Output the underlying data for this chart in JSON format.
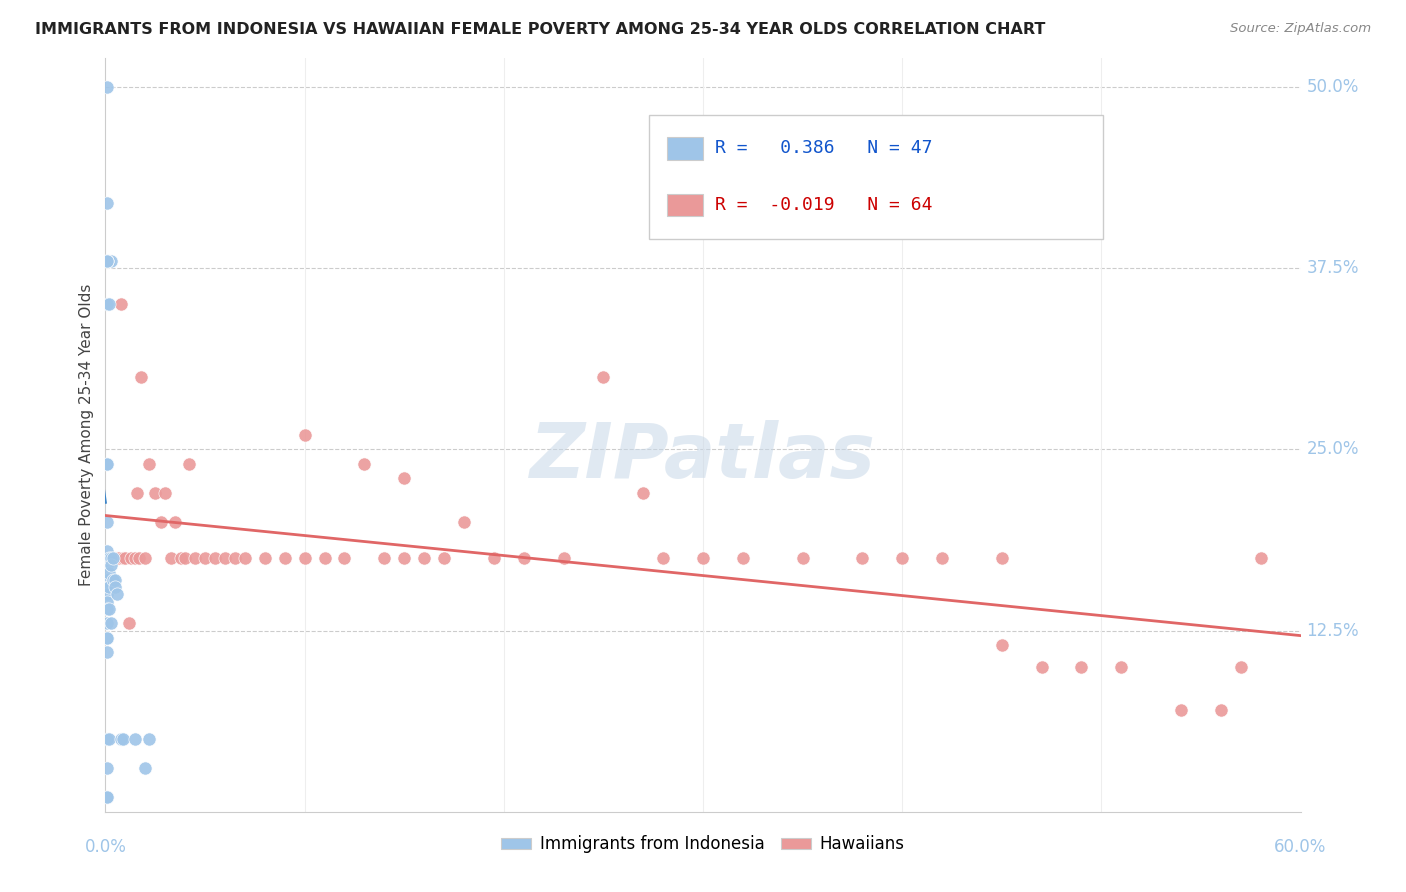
{
  "title": "IMMIGRANTS FROM INDONESIA VS HAWAIIAN FEMALE POVERTY AMONG 25-34 YEAR OLDS CORRELATION CHART",
  "source": "Source: ZipAtlas.com",
  "ylabel": "Female Poverty Among 25-34 Year Olds",
  "legend_label1": "Immigrants from Indonesia",
  "legend_label2": "Hawaiians",
  "legend_r1": "0.386",
  "legend_n1": "47",
  "legend_r2": "-0.019",
  "legend_n2": "64",
  "color_blue": "#9fc5e8",
  "color_pink": "#ea9999",
  "color_blue_line": "#3d85c8",
  "color_pink_line": "#e06666",
  "color_blue_dark": "#1155cc",
  "color_pink_dark": "#cc0000",
  "color_text_dark": "#333333",
  "background": "#ffffff",
  "watermark": "ZIPatlas",
  "blue_x": [
    0.001,
    0.001,
    0.001,
    0.001,
    0.001,
    0.001,
    0.001,
    0.001,
    0.001,
    0.001,
    0.001,
    0.001,
    0.001,
    0.001,
    0.001,
    0.001,
    0.001,
    0.001,
    0.001,
    0.001,
    0.002,
    0.002,
    0.002,
    0.002,
    0.002,
    0.002,
    0.002,
    0.003,
    0.003,
    0.003,
    0.003,
    0.004,
    0.004,
    0.005,
    0.005,
    0.006,
    0.008,
    0.009,
    0.001,
    0.001,
    0.001,
    0.001,
    0.001,
    0.001,
    0.015,
    0.02,
    0.022
  ],
  "blue_y": [
    0.5,
    0.42,
    0.38,
    0.35,
    0.24,
    0.24,
    0.2,
    0.18,
    0.17,
    0.16,
    0.155,
    0.15,
    0.145,
    0.14,
    0.13,
    0.12,
    0.11,
    0.05,
    0.03,
    0.01,
    0.38,
    0.35,
    0.175,
    0.165,
    0.155,
    0.14,
    0.05,
    0.38,
    0.175,
    0.17,
    0.13,
    0.175,
    0.16,
    0.16,
    0.155,
    0.15,
    0.05,
    0.05,
    0.38,
    0.38,
    0.38,
    0.12,
    0.12,
    0.01,
    0.05,
    0.03,
    0.05
  ],
  "pink_x": [
    0.003,
    0.004,
    0.005,
    0.006,
    0.007,
    0.008,
    0.009,
    0.01,
    0.012,
    0.013,
    0.015,
    0.016,
    0.017,
    0.018,
    0.02,
    0.022,
    0.025,
    0.028,
    0.03,
    0.033,
    0.035,
    0.038,
    0.04,
    0.042,
    0.045,
    0.05,
    0.055,
    0.06,
    0.065,
    0.07,
    0.08,
    0.09,
    0.1,
    0.11,
    0.12,
    0.13,
    0.14,
    0.15,
    0.16,
    0.17,
    0.18,
    0.195,
    0.21,
    0.23,
    0.25,
    0.28,
    0.3,
    0.32,
    0.35,
    0.38,
    0.4,
    0.42,
    0.45,
    0.47,
    0.49,
    0.51,
    0.54,
    0.56,
    0.57,
    0.58,
    0.1,
    0.15,
    0.27,
    0.45
  ],
  "pink_y": [
    0.175,
    0.175,
    0.175,
    0.175,
    0.175,
    0.35,
    0.175,
    0.175,
    0.13,
    0.175,
    0.175,
    0.22,
    0.175,
    0.3,
    0.175,
    0.24,
    0.22,
    0.2,
    0.22,
    0.175,
    0.2,
    0.175,
    0.175,
    0.24,
    0.175,
    0.175,
    0.175,
    0.175,
    0.175,
    0.175,
    0.175,
    0.175,
    0.175,
    0.175,
    0.175,
    0.24,
    0.175,
    0.175,
    0.175,
    0.175,
    0.2,
    0.175,
    0.175,
    0.175,
    0.3,
    0.175,
    0.175,
    0.175,
    0.175,
    0.175,
    0.175,
    0.175,
    0.175,
    0.1,
    0.1,
    0.1,
    0.07,
    0.07,
    0.1,
    0.175,
    0.26,
    0.23,
    0.22,
    0.115
  ],
  "xlim": [
    0.0,
    0.6
  ],
  "ylim": [
    0.0,
    0.52
  ],
  "ytick_vals": [
    0.125,
    0.25,
    0.375,
    0.5
  ],
  "ytick_labels": [
    "12.5%",
    "25.0%",
    "37.5%",
    "50.0%"
  ],
  "xtick_vals": [
    0.0,
    0.6
  ],
  "xtick_labels": [
    "0.0%",
    "60.0%"
  ]
}
